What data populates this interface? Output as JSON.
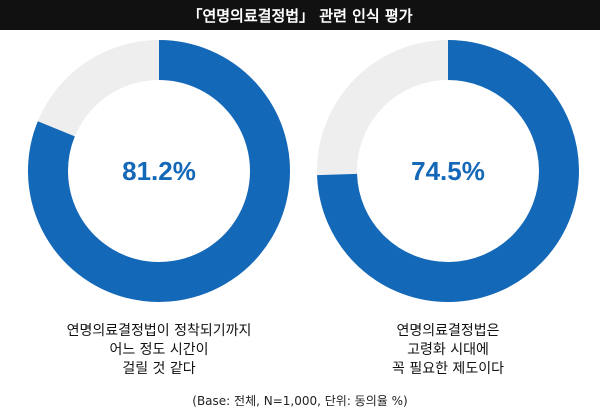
{
  "title": "「연명의료결정법」 관련 인식 평가",
  "footnote": "(Base: 전체, N=1,000, 단위: 동의율 %)",
  "colors": {
    "accent": "#1468b8",
    "remainder": "#eeeeee",
    "header_bg": "#111111"
  },
  "chart_data": [
    {
      "type": "pie",
      "value": 81.2,
      "value_label": "81.2%",
      "caption_lines": [
        "연명의료결정법이 정착되기까지",
        "어느 정도 시간이",
        "걸릴 것 같다"
      ]
    },
    {
      "type": "pie",
      "value": 74.5,
      "value_label": "74.5%",
      "caption_lines": [
        "연명의료결정법은",
        "고령화 시대에",
        "꼭 필요한 제도이다"
      ]
    }
  ]
}
